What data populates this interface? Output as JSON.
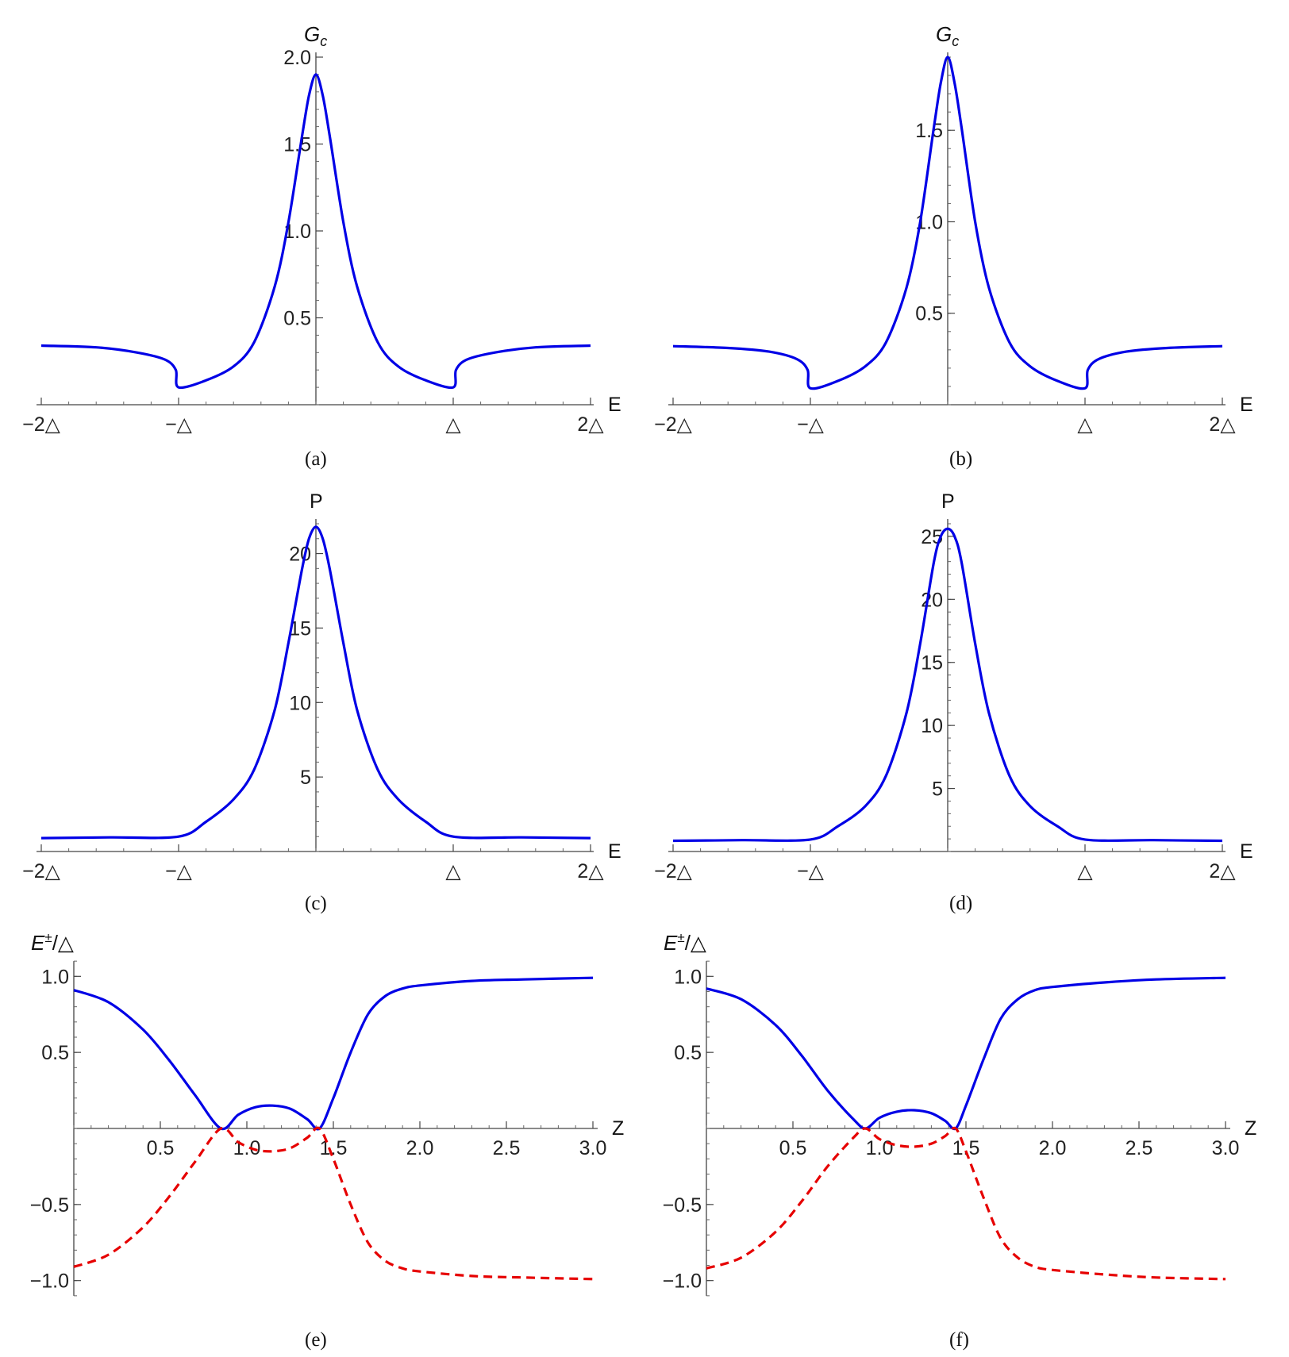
{
  "chart_data": [
    {
      "id": "a",
      "type": "line",
      "caption": "(a)",
      "ylabel_main": "G",
      "ylabel_sub": "c",
      "xlabel": "E",
      "xlim": [
        -2,
        2
      ],
      "ylim": [
        0,
        2.0
      ],
      "xticks": [
        -2,
        -1,
        1,
        2
      ],
      "xtick_labels": [
        "−2△",
        "−△",
        "△",
        "2△"
      ],
      "yticks": [
        0.5,
        1.0,
        1.5,
        2.0
      ],
      "ytick_labels": [
        "0.5",
        "1.0",
        "1.5",
        "2.0"
      ],
      "series": [
        {
          "color": "#0000e6",
          "style": "solid",
          "x": [
            -2.0,
            -1.6,
            -1.3,
            -1.1,
            -1.02,
            -1.0,
            -0.8,
            -0.6,
            -0.45,
            -0.3,
            -0.2,
            -0.1,
            -0.05,
            0.0,
            0.05,
            0.1,
            0.2,
            0.3,
            0.45,
            0.6,
            0.8,
            1.0,
            1.02,
            1.1,
            1.3,
            1.6,
            2.0
          ],
          "y": [
            0.34,
            0.33,
            0.3,
            0.26,
            0.2,
            0.1,
            0.14,
            0.22,
            0.36,
            0.68,
            1.05,
            1.55,
            1.78,
            1.9,
            1.78,
            1.55,
            1.05,
            0.68,
            0.36,
            0.22,
            0.14,
            0.1,
            0.2,
            0.26,
            0.3,
            0.33,
            0.34
          ]
        }
      ]
    },
    {
      "id": "b",
      "type": "line",
      "caption": "(b)",
      "ylabel_main": "G",
      "ylabel_sub": "c",
      "xlabel": "E",
      "xlim": [
        -2,
        2
      ],
      "ylim": [
        0,
        1.9
      ],
      "xticks": [
        -2,
        -1,
        1,
        2
      ],
      "xtick_labels": [
        "−2△",
        "−△",
        "△",
        "2△"
      ],
      "yticks": [
        0.5,
        1.0,
        1.5
      ],
      "ytick_labels": [
        "0.5",
        "1.0",
        "1.5"
      ],
      "series": [
        {
          "color": "#0000e6",
          "style": "solid",
          "x": [
            -2.0,
            -1.6,
            -1.3,
            -1.1,
            -1.02,
            -1.0,
            -0.8,
            -0.6,
            -0.45,
            -0.3,
            -0.2,
            -0.1,
            -0.05,
            0.0,
            0.05,
            0.1,
            0.2,
            0.3,
            0.45,
            0.6,
            0.8,
            1.0,
            1.02,
            1.1,
            1.3,
            1.6,
            2.0
          ],
          "y": [
            0.32,
            0.31,
            0.29,
            0.25,
            0.19,
            0.09,
            0.13,
            0.21,
            0.34,
            0.64,
            1.0,
            1.52,
            1.76,
            1.9,
            1.76,
            1.52,
            1.0,
            0.64,
            0.34,
            0.21,
            0.13,
            0.09,
            0.19,
            0.25,
            0.29,
            0.31,
            0.32
          ]
        }
      ]
    },
    {
      "id": "c",
      "type": "line",
      "caption": "(c)",
      "ylabel_main": "P",
      "xlabel": "E",
      "xlim": [
        -2,
        2
      ],
      "ylim": [
        0,
        22
      ],
      "xticks": [
        -2,
        -1,
        1,
        2
      ],
      "xtick_labels": [
        "−2△",
        "−△",
        "△",
        "2△"
      ],
      "yticks": [
        5,
        10,
        15,
        20
      ],
      "ytick_labels": [
        "5",
        "10",
        "15",
        "20"
      ],
      "series": [
        {
          "color": "#0000e6",
          "style": "solid",
          "x": [
            -2.0,
            -1.5,
            -1.0,
            -0.8,
            -0.6,
            -0.45,
            -0.3,
            -0.2,
            -0.1,
            -0.05,
            0.0,
            0.05,
            0.1,
            0.2,
            0.3,
            0.45,
            0.6,
            0.8,
            1.0,
            1.5,
            2.0
          ],
          "y": [
            0.9,
            0.95,
            1.0,
            2.0,
            3.5,
            5.5,
            9.5,
            14.0,
            19.0,
            21.0,
            21.8,
            21.0,
            19.0,
            14.0,
            9.5,
            5.5,
            3.5,
            2.0,
            1.0,
            0.95,
            0.9
          ]
        }
      ]
    },
    {
      "id": "d",
      "type": "line",
      "caption": "(d)",
      "ylabel_main": "P",
      "xlabel": "E",
      "xlim": [
        -2,
        2
      ],
      "ylim": [
        0,
        26
      ],
      "xticks": [
        -2,
        -1,
        1,
        2
      ],
      "xtick_labels": [
        "−2△",
        "−△",
        "△",
        "2△"
      ],
      "yticks": [
        5,
        10,
        15,
        20,
        25
      ],
      "ytick_labels": [
        "5",
        "10",
        "15",
        "20",
        "25"
      ],
      "series": [
        {
          "color": "#0000e6",
          "style": "solid",
          "x": [
            -2.0,
            -1.5,
            -1.0,
            -0.8,
            -0.6,
            -0.45,
            -0.3,
            -0.2,
            -0.1,
            -0.05,
            0.0,
            0.05,
            0.1,
            0.2,
            0.3,
            0.45,
            0.6,
            0.8,
            1.0,
            1.5,
            2.0
          ],
          "y": [
            0.85,
            0.9,
            0.95,
            2.0,
            3.6,
            6.0,
            11.0,
            16.5,
            23.0,
            25.0,
            25.6,
            25.0,
            23.0,
            16.5,
            11.0,
            6.0,
            3.6,
            2.0,
            0.95,
            0.9,
            0.85
          ]
        }
      ]
    },
    {
      "id": "e",
      "type": "line",
      "caption": "(e)",
      "ylabel_main": "E",
      "ylabel_sup": "±",
      "ylabel_suffix": "/△",
      "xlabel": "Z",
      "xlim": [
        0,
        3.0
      ],
      "ylim": [
        -1.1,
        1.1
      ],
      "xticks": [
        0.5,
        1.0,
        1.5,
        2.0,
        2.5,
        3.0
      ],
      "xtick_labels": [
        "0.5",
        "1.0",
        "1.5",
        "2.0",
        "2.5",
        "3.0"
      ],
      "yticks": [
        -1.0,
        -0.5,
        0.5,
        1.0
      ],
      "ytick_labels": [
        "−1.0",
        "−0.5",
        "0.5",
        "1.0"
      ],
      "series": [
        {
          "color": "#0000e6",
          "style": "solid",
          "x": [
            0.0,
            0.2,
            0.4,
            0.55,
            0.7,
            0.85,
            0.95,
            1.05,
            1.15,
            1.25,
            1.35,
            1.42,
            1.5,
            1.6,
            1.7,
            1.8,
            1.9,
            2.0,
            2.3,
            2.6,
            3.0
          ],
          "y": [
            0.91,
            0.83,
            0.65,
            0.45,
            0.22,
            0.0,
            0.09,
            0.14,
            0.15,
            0.13,
            0.06,
            0.0,
            0.2,
            0.5,
            0.75,
            0.87,
            0.92,
            0.94,
            0.97,
            0.98,
            0.99
          ]
        },
        {
          "color": "#e60000",
          "style": "dashed",
          "x": [
            0.0,
            0.2,
            0.4,
            0.55,
            0.7,
            0.85,
            0.95,
            1.05,
            1.15,
            1.25,
            1.35,
            1.42,
            1.5,
            1.6,
            1.7,
            1.8,
            1.9,
            2.0,
            2.3,
            2.6,
            3.0
          ],
          "y": [
            -0.91,
            -0.83,
            -0.65,
            -0.45,
            -0.22,
            0.0,
            -0.09,
            -0.14,
            -0.15,
            -0.13,
            -0.06,
            0.0,
            -0.2,
            -0.5,
            -0.75,
            -0.87,
            -0.92,
            -0.94,
            -0.97,
            -0.98,
            -0.99
          ]
        }
      ]
    },
    {
      "id": "f",
      "type": "line",
      "caption": "(f)",
      "ylabel_main": "E",
      "ylabel_sup": "±",
      "ylabel_suffix": "/△",
      "xlabel": "Z",
      "xlim": [
        0,
        3.0
      ],
      "ylim": [
        -1.1,
        1.1
      ],
      "xticks": [
        0.5,
        1.0,
        1.5,
        2.0,
        2.5,
        3.0
      ],
      "xtick_labels": [
        "0.5",
        "1.0",
        "1.5",
        "2.0",
        "2.5",
        "3.0"
      ],
      "yticks": [
        -1.0,
        -0.5,
        0.5,
        1.0
      ],
      "ytick_labels": [
        "−1.0",
        "−0.5",
        "0.5",
        "1.0"
      ],
      "series": [
        {
          "color": "#0000e6",
          "style": "solid",
          "x": [
            0.0,
            0.2,
            0.4,
            0.55,
            0.7,
            0.85,
            0.92,
            1.0,
            1.1,
            1.2,
            1.3,
            1.38,
            1.44,
            1.5,
            1.6,
            1.7,
            1.8,
            1.9,
            2.0,
            2.3,
            2.6,
            3.0
          ],
          "y": [
            0.92,
            0.85,
            0.68,
            0.48,
            0.25,
            0.06,
            0.0,
            0.07,
            0.11,
            0.12,
            0.1,
            0.05,
            0.0,
            0.15,
            0.45,
            0.72,
            0.85,
            0.91,
            0.93,
            0.96,
            0.98,
            0.99
          ]
        },
        {
          "color": "#e60000",
          "style": "dashed",
          "x": [
            0.0,
            0.2,
            0.4,
            0.55,
            0.7,
            0.85,
            0.92,
            1.0,
            1.1,
            1.2,
            1.3,
            1.38,
            1.44,
            1.5,
            1.6,
            1.7,
            1.8,
            1.9,
            2.0,
            2.3,
            2.6,
            3.0
          ],
          "y": [
            -0.92,
            -0.85,
            -0.68,
            -0.48,
            -0.25,
            -0.06,
            0.0,
            -0.07,
            -0.11,
            -0.12,
            -0.1,
            -0.05,
            0.0,
            -0.15,
            -0.45,
            -0.72,
            -0.85,
            -0.91,
            -0.93,
            -0.96,
            -0.98,
            -0.99
          ]
        }
      ]
    }
  ]
}
